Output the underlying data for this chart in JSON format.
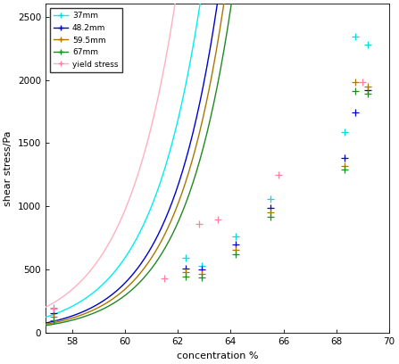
{
  "xlabel": "concentration %",
  "ylabel": "shear stress/Pa",
  "xlim": [
    57,
    70
  ],
  "ylim": [
    0,
    2600
  ],
  "xticks": [
    58,
    60,
    62,
    64,
    66,
    68,
    70
  ],
  "yticks": [
    0,
    500,
    1000,
    1500,
    2000,
    2500
  ],
  "series": [
    {
      "label": "37mm",
      "color": "#00EEEE",
      "scatter_color": "#00DDDD",
      "a": 5.5,
      "b": 0.52,
      "c": 51.0
    },
    {
      "label": "48.2mm",
      "color": "#0000CC",
      "scatter_color": "#0000CC",
      "a": 4.0,
      "b": 0.54,
      "c": 51.5
    },
    {
      "label": "59.5mm",
      "color": "#AA7700",
      "scatter_color": "#AA7700",
      "a": 3.5,
      "b": 0.54,
      "c": 51.5
    },
    {
      "label": "67mm",
      "color": "#228822",
      "scatter_color": "#228822",
      "a": 3.0,
      "b": 0.54,
      "c": 51.5
    },
    {
      "label": "yield stress",
      "color": "#FFB0C0",
      "scatter_color": "#FF80A0",
      "a": 9.0,
      "b": 0.52,
      "c": 51.0
    }
  ],
  "scatter_points": {
    "37mm": {
      "x": [
        57.3,
        62.3,
        62.9,
        64.2,
        65.5,
        68.3,
        68.7,
        69.2
      ],
      "y": [
        200,
        590,
        530,
        760,
        1060,
        1590,
        2340,
        2280
      ]
    },
    "48.2mm": {
      "x": [
        57.3,
        62.3,
        62.9,
        64.2,
        65.5,
        68.3,
        68.7,
        69.2
      ],
      "y": [
        155,
        510,
        500,
        700,
        990,
        1380,
        1740,
        1920
      ]
    },
    "59.5mm": {
      "x": [
        57.3,
        62.3,
        62.9,
        64.2,
        65.5,
        68.3,
        68.7,
        69.2
      ],
      "y": [
        130,
        480,
        465,
        660,
        955,
        1320,
        1980,
        1950
      ]
    },
    "67mm": {
      "x": [
        57.3,
        62.3,
        62.9,
        64.2,
        65.5,
        68.3,
        68.7,
        69.2
      ],
      "y": [
        100,
        445,
        435,
        625,
        915,
        1290,
        1910,
        1890
      ]
    },
    "yield stress": {
      "x": [
        57.3,
        61.5,
        62.8,
        63.5,
        65.8,
        69.0
      ],
      "y": [
        190,
        430,
        860,
        900,
        1250,
        1980
      ]
    }
  },
  "figsize": [
    4.47,
    4.08
  ],
  "dpi": 100
}
